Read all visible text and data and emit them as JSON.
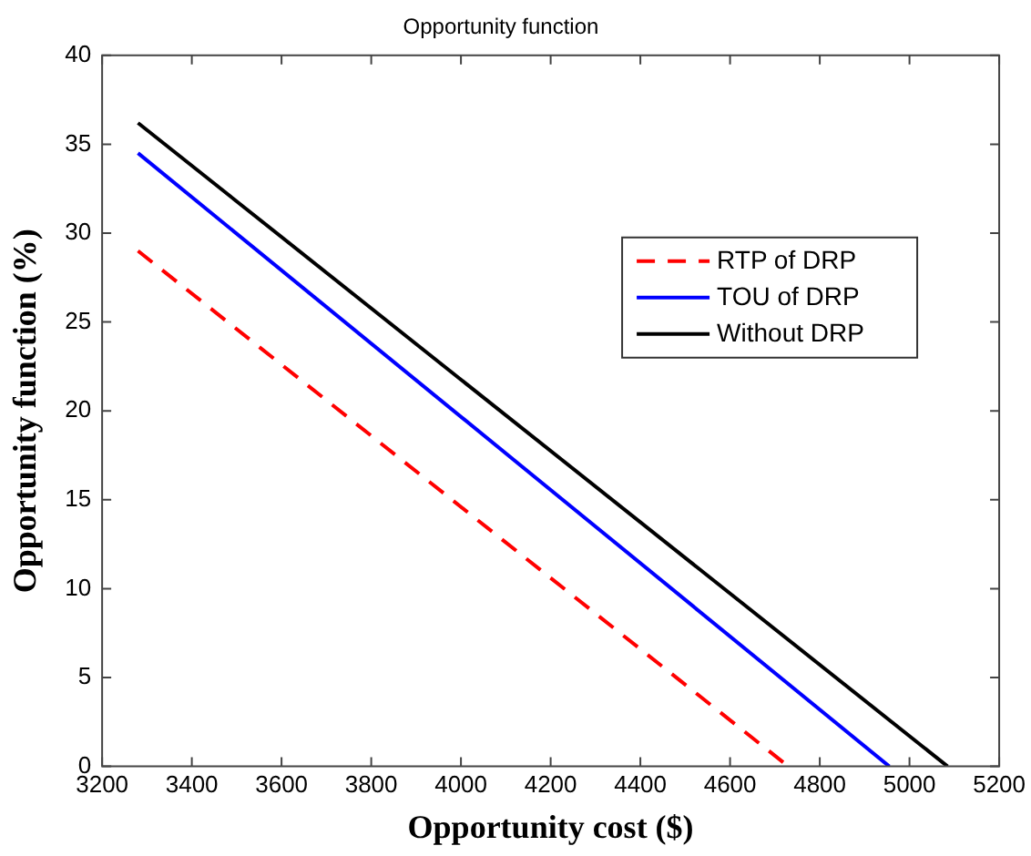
{
  "chart_data": {
    "type": "line",
    "title": "Opportunity function",
    "xlabel": "Opportunity cost ($)",
    "ylabel": "Opportunity function (%)",
    "xlim": [
      3200,
      5200
    ],
    "xticks": [
      3200,
      3400,
      3600,
      3800,
      4000,
      4200,
      4400,
      4600,
      4800,
      5000,
      5200
    ],
    "ylim": [
      0,
      40
    ],
    "yticks": [
      0,
      5,
      10,
      15,
      20,
      25,
      30,
      35,
      40
    ],
    "grid": false,
    "legend": "top right",
    "marker": "none",
    "series": [
      {
        "name": "RTP of DRP",
        "color": "#ff0000",
        "x": [
          3280,
          4730
        ],
        "values": [
          29,
          0
        ],
        "line_style": "dashed"
      },
      {
        "name": "TOU of DRP",
        "color": "#0000ff",
        "x": [
          3280,
          4955
        ],
        "values": [
          34.5,
          0
        ],
        "line_style": "solid"
      },
      {
        "name": "Without DRP",
        "color": "#000000",
        "x": [
          3280,
          5085
        ],
        "values": [
          36.2,
          0
        ],
        "line_style": "solid"
      }
    ]
  }
}
